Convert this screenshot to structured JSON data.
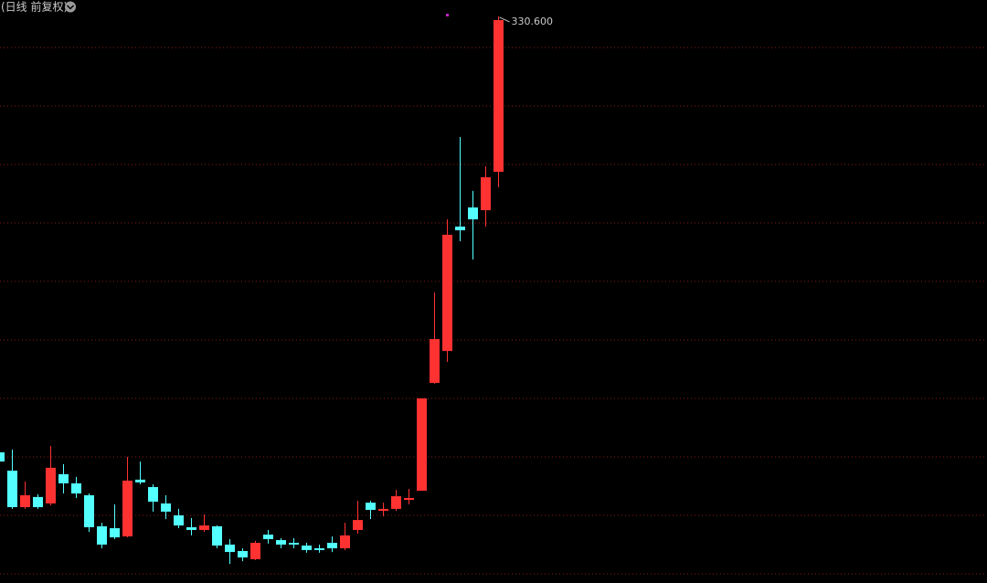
{
  "chart_data": {
    "type": "candlestick",
    "title": "(日线 前复权)",
    "categories": [
      null,
      null,
      null,
      null,
      null,
      null,
      null,
      null,
      null,
      null,
      null,
      null,
      null,
      null,
      null,
      null,
      null,
      null,
      null,
      null,
      null,
      null,
      null,
      null,
      null,
      null,
      null,
      null,
      null,
      null,
      null,
      null,
      null,
      null,
      null,
      null,
      null,
      null,
      null,
      null
    ],
    "open": [
      107.0,
      97.6,
      78.9,
      84.1,
      80.8,
      95.8,
      91.1,
      85.0,
      69.1,
      68.1,
      63.9,
      93.0,
      89.2,
      80.8,
      74.7,
      68.6,
      67.2,
      69.1,
      59.7,
      56.4,
      52.2,
      64.8,
      62.0,
      60.6,
      59.2,
      57.8,
      60.6,
      57.8,
      67.2,
      81.2,
      77.0,
      78.0,
      82.6,
      87.3,
      142.6,
      159.0,
      222.8,
      232.6,
      231.2,
      250.9
    ],
    "high": [
      108.4,
      108.4,
      92.0,
      85.5,
      110.3,
      100.9,
      94.4,
      85.9,
      70.9,
      80.3,
      104.7,
      102.3,
      90.6,
      85.0,
      78.0,
      73.3,
      75.2,
      69.5,
      62.5,
      57.8,
      61.6,
      67.2,
      63.0,
      63.0,
      60.6,
      59.7,
      63.9,
      70.9,
      82.2,
      82.2,
      81.2,
      87.8,
      88.3,
      134.7,
      189.0,
      226.5,
      268.7,
      241.1,
      253.7,
      330.6
    ],
    "low": [
      101.4,
      78.0,
      78.0,
      78.0,
      79.8,
      85.9,
      83.6,
      66.2,
      57.8,
      62.5,
      63.4,
      90.6,
      76.6,
      72.8,
      68.1,
      64.4,
      66.2,
      57.8,
      49.8,
      51.2,
      51.7,
      60.2,
      57.8,
      57.8,
      55.5,
      55.5,
      55.9,
      56.9,
      65.3,
      72.8,
      74.2,
      77.0,
      80.3,
      87.3,
      142.2,
      153.4,
      215.3,
      205.9,
      222.8,
      242.9
    ],
    "close": [
      102.3,
      78.9,
      85.0,
      78.9,
      99.1,
      91.1,
      85.9,
      68.6,
      59.7,
      63.4,
      92.5,
      91.6,
      81.7,
      76.6,
      69.5,
      67.2,
      69.5,
      59.2,
      55.9,
      53.1,
      60.6,
      62.5,
      59.7,
      59.7,
      56.9,
      56.9,
      57.8,
      64.4,
      72.3,
      77.5,
      78.0,
      84.5,
      83.6,
      134.7,
      165.1,
      218.6,
      220.9,
      226.5,
      248.1,
      328.7
    ],
    "up_color": "#ff3232",
    "down_color": "#54ffff",
    "max_label": "330.600",
    "ylim": [
      40,
      339
    ]
  }
}
